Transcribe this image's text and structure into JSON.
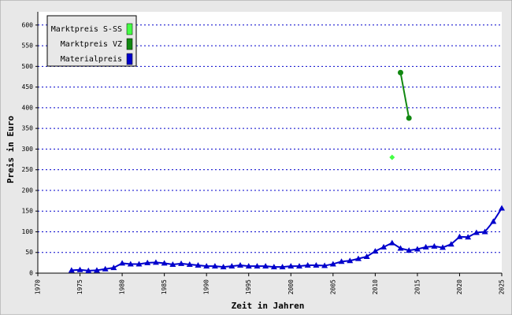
{
  "chart_data": {
    "type": "line",
    "xlabel": "Zeit in Jahren",
    "ylabel": "Preis in Euro",
    "xlim": [
      1970,
      2025
    ],
    "xticks": [
      1970,
      1975,
      1980,
      1985,
      1990,
      1995,
      2000,
      2005,
      2010,
      2015,
      2020,
      2025
    ],
    "ylim": [
      0,
      632
    ],
    "yticks": [
      0,
      50,
      100,
      150,
      200,
      250,
      300,
      350,
      400,
      450,
      500,
      550,
      600
    ],
    "grid": true,
    "legend": "upper left",
    "series": [
      {
        "name": "Marktpreis S-SS",
        "color": "#44ff44",
        "marker": "diamond",
        "line": false,
        "x": [
          2012
        ],
        "values": [
          280
        ]
      },
      {
        "name": "Marktpreis VZ",
        "color": "#118811",
        "marker": "circle",
        "line": true,
        "x": [
          2013,
          2014
        ],
        "values": [
          485,
          375
        ]
      },
      {
        "name": "Materialpreis",
        "color": "#0000cc",
        "marker": "triangle",
        "line": true,
        "x": [
          1974,
          1975,
          1976,
          1977,
          1978,
          1979,
          1980,
          1981,
          1982,
          1983,
          1984,
          1985,
          1986,
          1987,
          1988,
          1989,
          1990,
          1991,
          1992,
          1993,
          1994,
          1995,
          1996,
          1997,
          1998,
          1999,
          2000,
          2001,
          2002,
          2003,
          2004,
          2005,
          2006,
          2007,
          2008,
          2009,
          2010,
          2011,
          2012,
          2013,
          2014,
          2015,
          2016,
          2017,
          2018,
          2019,
          2020,
          2021,
          2022,
          2023,
          2024,
          2025
        ],
        "values": [
          7,
          8,
          6,
          7,
          10,
          13,
          24,
          22,
          22,
          25,
          26,
          24,
          21,
          23,
          21,
          19,
          17,
          17,
          15,
          17,
          19,
          17,
          17,
          17,
          15,
          15,
          17,
          17,
          19,
          19,
          18,
          22,
          28,
          30,
          35,
          40,
          53,
          63,
          73,
          60,
          55,
          58,
          63,
          65,
          62,
          70,
          88,
          87,
          98,
          100,
          125,
          157
        ]
      }
    ]
  }
}
